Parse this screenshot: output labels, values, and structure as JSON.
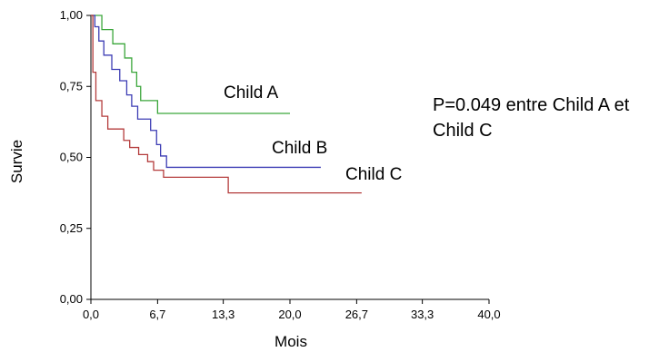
{
  "chart_data": {
    "type": "line",
    "style": "step",
    "xlabel": "Mois",
    "ylabel": "Survie",
    "xlim": [
      0,
      40
    ],
    "ylim": [
      0,
      1
    ],
    "x_ticks": [
      "0,0",
      "6,7",
      "13,3",
      "20,0",
      "26,7",
      "33,3",
      "40,0"
    ],
    "x_tick_values": [
      0,
      6.7,
      13.3,
      20,
      26.7,
      33.3,
      40
    ],
    "y_ticks": [
      "0,00",
      "0,25",
      "0,50",
      "0,75",
      "1,00"
    ],
    "y_tick_values": [
      0,
      0.25,
      0.5,
      0.75,
      1
    ],
    "grid": false,
    "legend": "none",
    "annotation": [
      "P=0.049 entre Child A et",
      "Child C"
    ],
    "series": [
      {
        "name": "Child A",
        "color": "#3aa63a",
        "points": [
          [
            0,
            1.0
          ],
          [
            1.1,
            1.0
          ],
          [
            1.1,
            0.95
          ],
          [
            2.2,
            0.95
          ],
          [
            2.2,
            0.9
          ],
          [
            3.4,
            0.9
          ],
          [
            3.4,
            0.85
          ],
          [
            4.1,
            0.85
          ],
          [
            4.1,
            0.8
          ],
          [
            4.6,
            0.8
          ],
          [
            4.6,
            0.75
          ],
          [
            5.0,
            0.75
          ],
          [
            5.0,
            0.7
          ],
          [
            6.7,
            0.7
          ],
          [
            6.7,
            0.655
          ],
          [
            20.0,
            0.655
          ]
        ]
      },
      {
        "name": "Child B",
        "color": "#3c3cb4",
        "points": [
          [
            0,
            1.0
          ],
          [
            0.4,
            1.0
          ],
          [
            0.4,
            0.96
          ],
          [
            0.8,
            0.96
          ],
          [
            0.8,
            0.91
          ],
          [
            1.3,
            0.91
          ],
          [
            1.3,
            0.86
          ],
          [
            2.1,
            0.86
          ],
          [
            2.1,
            0.81
          ],
          [
            2.9,
            0.81
          ],
          [
            2.9,
            0.77
          ],
          [
            3.6,
            0.77
          ],
          [
            3.6,
            0.72
          ],
          [
            4.1,
            0.72
          ],
          [
            4.1,
            0.68
          ],
          [
            4.7,
            0.68
          ],
          [
            4.7,
            0.635
          ],
          [
            6.0,
            0.635
          ],
          [
            6.0,
            0.595
          ],
          [
            6.6,
            0.595
          ],
          [
            6.6,
            0.545
          ],
          [
            7.0,
            0.545
          ],
          [
            7.0,
            0.505
          ],
          [
            7.6,
            0.505
          ],
          [
            7.6,
            0.465
          ],
          [
            23.1,
            0.465
          ]
        ]
      },
      {
        "name": "Child C",
        "color": "#b43c3c",
        "points": [
          [
            0,
            1.0
          ],
          [
            0.2,
            1.0
          ],
          [
            0.2,
            0.8
          ],
          [
            0.5,
            0.8
          ],
          [
            0.5,
            0.7
          ],
          [
            1.1,
            0.7
          ],
          [
            1.1,
            0.645
          ],
          [
            1.7,
            0.645
          ],
          [
            1.7,
            0.6
          ],
          [
            3.3,
            0.6
          ],
          [
            3.3,
            0.56
          ],
          [
            3.9,
            0.56
          ],
          [
            3.9,
            0.535
          ],
          [
            4.8,
            0.535
          ],
          [
            4.8,
            0.51
          ],
          [
            5.7,
            0.51
          ],
          [
            5.7,
            0.485
          ],
          [
            6.3,
            0.485
          ],
          [
            6.3,
            0.455
          ],
          [
            7.3,
            0.455
          ],
          [
            7.3,
            0.43
          ],
          [
            13.8,
            0.43
          ],
          [
            13.8,
            0.375
          ],
          [
            27.2,
            0.375
          ]
        ]
      }
    ]
  }
}
